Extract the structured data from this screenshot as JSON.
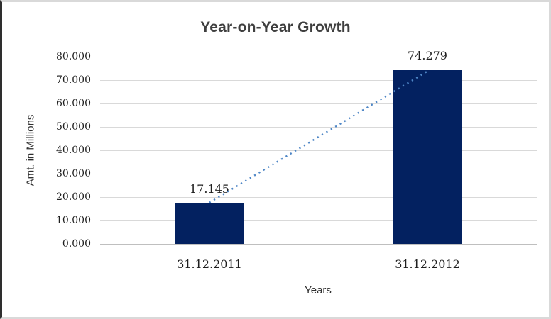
{
  "chart_data": {
    "type": "bar",
    "title": "Year-on-Year Growth",
    "xlabel": "Years",
    "ylabel": "Amt. in Millions",
    "categories": [
      "31.12.2011",
      "31.12.2012"
    ],
    "values": [
      17.145,
      74.279
    ],
    "data_labels": [
      "17.145",
      "74.279"
    ],
    "ylim": [
      0,
      80
    ],
    "ytick_step": 10,
    "ytick_labels": [
      "0.000",
      "10.000",
      "20.000",
      "30.000",
      "40.000",
      "50.000",
      "60.000",
      "70.000",
      "80.000"
    ],
    "grid": true,
    "legend": "none",
    "bar_color": "#032160",
    "trendline": {
      "style": "dotted",
      "color": "#4e86c6"
    },
    "gridline_color": "#d9d9d9",
    "axis_line_color": "#bfbfbf",
    "title_color": "#3f3f3f"
  }
}
